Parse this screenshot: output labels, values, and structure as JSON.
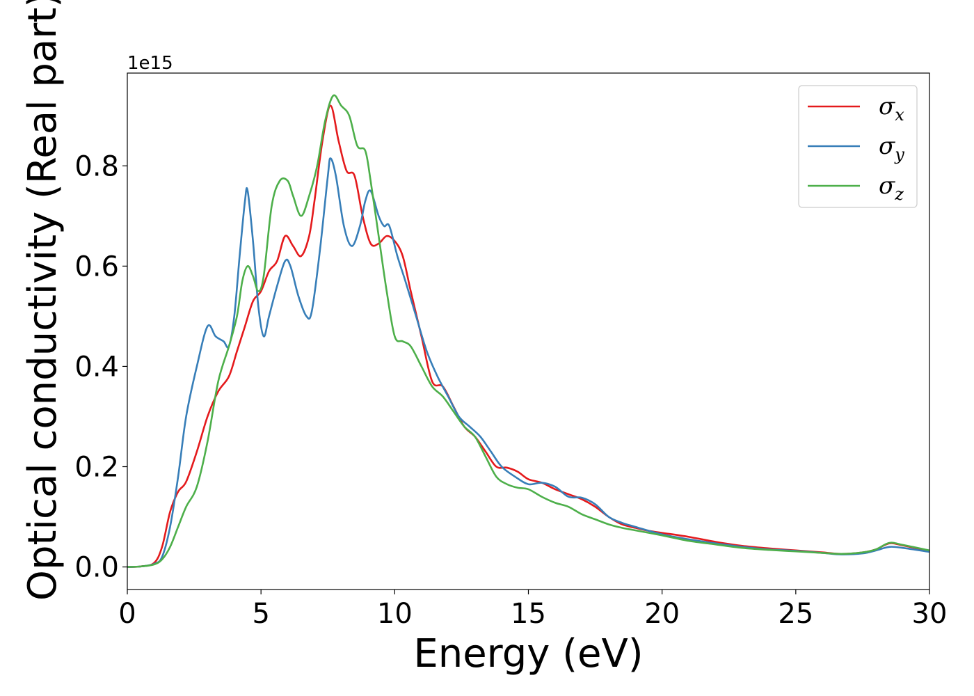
{
  "chart_data": {
    "type": "line",
    "xlabel": "Energy (eV)",
    "ylabel": "Optical conductivity (Real part)",
    "y_offset_text": "1e15",
    "xlim": [
      0,
      30
    ],
    "ylim": [
      -0.045,
      0.985
    ],
    "y_scale_factor": 1000000000000000.0,
    "x_ticks": [
      0,
      5,
      10,
      15,
      20,
      25,
      30
    ],
    "x_tick_labels": [
      "0",
      "5",
      "10",
      "15",
      "20",
      "25",
      "30"
    ],
    "y_ticks": [
      0.0,
      0.2,
      0.4,
      0.6,
      0.8
    ],
    "y_tick_labels": [
      "0.0",
      "0.2",
      "0.4",
      "0.6",
      "0.8"
    ],
    "grid": false,
    "legend_position": "top-right",
    "series": [
      {
        "name": "σx",
        "legend_symbol": "σ",
        "legend_sub": "x",
        "color": "#e41a1c",
        "points": [
          [
            0,
            0.0
          ],
          [
            0.5,
            0.001
          ],
          [
            1.0,
            0.008
          ],
          [
            1.3,
            0.04
          ],
          [
            1.6,
            0.11
          ],
          [
            1.9,
            0.15
          ],
          [
            2.2,
            0.17
          ],
          [
            2.6,
            0.23
          ],
          [
            3.0,
            0.3
          ],
          [
            3.4,
            0.35
          ],
          [
            3.8,
            0.38
          ],
          [
            4.1,
            0.43
          ],
          [
            4.4,
            0.48
          ],
          [
            4.7,
            0.53
          ],
          [
            5.0,
            0.55
          ],
          [
            5.3,
            0.59
          ],
          [
            5.6,
            0.61
          ],
          [
            5.9,
            0.66
          ],
          [
            6.2,
            0.64
          ],
          [
            6.5,
            0.62
          ],
          [
            6.8,
            0.66
          ],
          [
            7.0,
            0.73
          ],
          [
            7.3,
            0.85
          ],
          [
            7.6,
            0.92
          ],
          [
            7.9,
            0.85
          ],
          [
            8.2,
            0.79
          ],
          [
            8.5,
            0.78
          ],
          [
            8.8,
            0.7
          ],
          [
            9.1,
            0.645
          ],
          [
            9.4,
            0.645
          ],
          [
            9.7,
            0.66
          ],
          [
            10.0,
            0.65
          ],
          [
            10.3,
            0.62
          ],
          [
            10.6,
            0.55
          ],
          [
            11.0,
            0.46
          ],
          [
            11.4,
            0.37
          ],
          [
            11.8,
            0.36
          ],
          [
            12.2,
            0.32
          ],
          [
            12.6,
            0.28
          ],
          [
            13.0,
            0.26
          ],
          [
            13.4,
            0.23
          ],
          [
            13.8,
            0.2
          ],
          [
            14.2,
            0.198
          ],
          [
            14.6,
            0.19
          ],
          [
            15.0,
            0.175
          ],
          [
            15.5,
            0.168
          ],
          [
            16.0,
            0.155
          ],
          [
            16.5,
            0.145
          ],
          [
            17.0,
            0.135
          ],
          [
            17.5,
            0.12
          ],
          [
            18.0,
            0.1
          ],
          [
            18.5,
            0.085
          ],
          [
            19.0,
            0.078
          ],
          [
            19.5,
            0.072
          ],
          [
            20.0,
            0.068
          ],
          [
            21.0,
            0.06
          ],
          [
            22.0,
            0.05
          ],
          [
            23.0,
            0.042
          ],
          [
            24.0,
            0.037
          ],
          [
            25.0,
            0.033
          ],
          [
            26.0,
            0.029
          ],
          [
            26.7,
            0.026
          ],
          [
            27.5,
            0.029
          ],
          [
            28.0,
            0.035
          ],
          [
            28.5,
            0.047
          ],
          [
            29.0,
            0.043
          ],
          [
            30.0,
            0.032
          ]
        ]
      },
      {
        "name": "σy",
        "legend_symbol": "σ",
        "legend_sub": "y",
        "color": "#377eb8",
        "points": [
          [
            0,
            0.0
          ],
          [
            0.5,
            0.001
          ],
          [
            1.0,
            0.006
          ],
          [
            1.3,
            0.02
          ],
          [
            1.6,
            0.08
          ],
          [
            1.9,
            0.18
          ],
          [
            2.2,
            0.3
          ],
          [
            2.6,
            0.4
          ],
          [
            3.0,
            0.48
          ],
          [
            3.3,
            0.46
          ],
          [
            3.6,
            0.45
          ],
          [
            3.8,
            0.44
          ],
          [
            4.0,
            0.5
          ],
          [
            4.2,
            0.62
          ],
          [
            4.4,
            0.73
          ],
          [
            4.5,
            0.75
          ],
          [
            4.7,
            0.65
          ],
          [
            4.9,
            0.52
          ],
          [
            5.1,
            0.46
          ],
          [
            5.3,
            0.5
          ],
          [
            5.6,
            0.56
          ],
          [
            5.9,
            0.61
          ],
          [
            6.1,
            0.6
          ],
          [
            6.4,
            0.54
          ],
          [
            6.7,
            0.5
          ],
          [
            6.9,
            0.51
          ],
          [
            7.2,
            0.63
          ],
          [
            7.5,
            0.78
          ],
          [
            7.6,
            0.815
          ],
          [
            7.8,
            0.78
          ],
          [
            8.1,
            0.68
          ],
          [
            8.4,
            0.64
          ],
          [
            8.7,
            0.68
          ],
          [
            8.9,
            0.73
          ],
          [
            9.1,
            0.75
          ],
          [
            9.4,
            0.7
          ],
          [
            9.6,
            0.68
          ],
          [
            9.8,
            0.68
          ],
          [
            10.1,
            0.62
          ],
          [
            10.4,
            0.57
          ],
          [
            10.8,
            0.5
          ],
          [
            11.2,
            0.43
          ],
          [
            11.6,
            0.38
          ],
          [
            12.0,
            0.34
          ],
          [
            12.4,
            0.3
          ],
          [
            12.8,
            0.28
          ],
          [
            13.2,
            0.26
          ],
          [
            13.6,
            0.23
          ],
          [
            14.0,
            0.2
          ],
          [
            14.5,
            0.18
          ],
          [
            15.0,
            0.165
          ],
          [
            15.5,
            0.168
          ],
          [
            16.0,
            0.16
          ],
          [
            16.5,
            0.14
          ],
          [
            17.0,
            0.138
          ],
          [
            17.5,
            0.125
          ],
          [
            18.0,
            0.1
          ],
          [
            18.5,
            0.088
          ],
          [
            19.0,
            0.08
          ],
          [
            20.0,
            0.065
          ],
          [
            21.0,
            0.055
          ],
          [
            22.0,
            0.047
          ],
          [
            23.0,
            0.04
          ],
          [
            24.0,
            0.035
          ],
          [
            25.0,
            0.032
          ],
          [
            26.0,
            0.028
          ],
          [
            26.7,
            0.025
          ],
          [
            27.5,
            0.027
          ],
          [
            28.0,
            0.033
          ],
          [
            28.5,
            0.04
          ],
          [
            29.0,
            0.038
          ],
          [
            30.0,
            0.03
          ]
        ]
      },
      {
        "name": "σz",
        "legend_symbol": "σ",
        "legend_sub": "z",
        "color": "#4daf4a",
        "points": [
          [
            0,
            0.0
          ],
          [
            0.5,
            0.001
          ],
          [
            1.0,
            0.005
          ],
          [
            1.3,
            0.015
          ],
          [
            1.6,
            0.04
          ],
          [
            1.9,
            0.08
          ],
          [
            2.2,
            0.12
          ],
          [
            2.6,
            0.16
          ],
          [
            3.0,
            0.25
          ],
          [
            3.4,
            0.37
          ],
          [
            3.8,
            0.44
          ],
          [
            4.1,
            0.5
          ],
          [
            4.3,
            0.57
          ],
          [
            4.5,
            0.6
          ],
          [
            4.7,
            0.58
          ],
          [
            4.9,
            0.55
          ],
          [
            5.1,
            0.58
          ],
          [
            5.4,
            0.72
          ],
          [
            5.7,
            0.77
          ],
          [
            6.0,
            0.77
          ],
          [
            6.2,
            0.74
          ],
          [
            6.5,
            0.7
          ],
          [
            6.8,
            0.74
          ],
          [
            7.1,
            0.8
          ],
          [
            7.4,
            0.89
          ],
          [
            7.7,
            0.94
          ],
          [
            8.0,
            0.92
          ],
          [
            8.3,
            0.9
          ],
          [
            8.6,
            0.84
          ],
          [
            8.9,
            0.83
          ],
          [
            9.1,
            0.77
          ],
          [
            9.4,
            0.66
          ],
          [
            9.7,
            0.55
          ],
          [
            10.0,
            0.46
          ],
          [
            10.3,
            0.45
          ],
          [
            10.6,
            0.44
          ],
          [
            11.0,
            0.4
          ],
          [
            11.4,
            0.36
          ],
          [
            11.8,
            0.34
          ],
          [
            12.2,
            0.31
          ],
          [
            12.6,
            0.28
          ],
          [
            13.0,
            0.26
          ],
          [
            13.4,
            0.22
          ],
          [
            13.8,
            0.18
          ],
          [
            14.2,
            0.165
          ],
          [
            14.6,
            0.158
          ],
          [
            15.0,
            0.155
          ],
          [
            15.5,
            0.14
          ],
          [
            16.0,
            0.128
          ],
          [
            16.5,
            0.12
          ],
          [
            17.0,
            0.105
          ],
          [
            17.5,
            0.095
          ],
          [
            18.0,
            0.085
          ],
          [
            18.5,
            0.078
          ],
          [
            19.0,
            0.073
          ],
          [
            20.0,
            0.063
          ],
          [
            21.0,
            0.052
          ],
          [
            22.0,
            0.045
          ],
          [
            23.0,
            0.038
          ],
          [
            24.0,
            0.034
          ],
          [
            25.0,
            0.031
          ],
          [
            26.0,
            0.028
          ],
          [
            26.7,
            0.026
          ],
          [
            27.5,
            0.029
          ],
          [
            28.0,
            0.035
          ],
          [
            28.5,
            0.048
          ],
          [
            29.0,
            0.044
          ],
          [
            30.0,
            0.033
          ]
        ]
      }
    ]
  }
}
